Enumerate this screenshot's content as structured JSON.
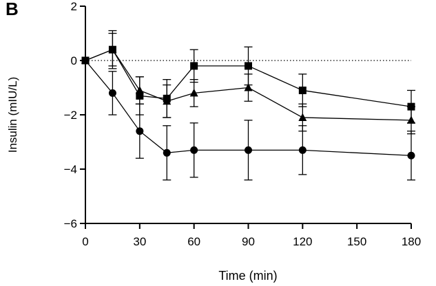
{
  "panel_label": "B",
  "chart_data": {
    "type": "line",
    "title": "",
    "xlabel": "Time (min)",
    "ylabel": "Insulin (mIU/L)",
    "xlim": [
      0,
      180
    ],
    "ylim": [
      -6,
      2
    ],
    "xticks": [
      0,
      30,
      60,
      90,
      120,
      150,
      180
    ],
    "yticks": [
      -6,
      -4,
      -2,
      0,
      2
    ],
    "xtick_labels": [
      "0",
      "30",
      "60",
      "90",
      "120",
      "150",
      "180"
    ],
    "ytick_labels": [
      "−6",
      "−4",
      "−2",
      "0",
      "2"
    ],
    "reference_line": {
      "y": 0,
      "style": "dotted"
    },
    "grid": false,
    "series": [
      {
        "name": "circle series",
        "marker": "circle",
        "x": [
          0,
          15,
          30,
          45,
          60,
          90,
          120,
          180
        ],
        "y": [
          0,
          -1.2,
          -2.6,
          -3.4,
          -3.3,
          -3.3,
          -3.3,
          -3.5
        ],
        "err": [
          0,
          0.8,
          1.0,
          1.0,
          1.0,
          1.1,
          0.9,
          0.9
        ]
      },
      {
        "name": "square series",
        "marker": "square",
        "x": [
          0,
          15,
          30,
          45,
          60,
          90,
          120,
          180
        ],
        "y": [
          0,
          0.4,
          -1.3,
          -1.4,
          -0.2,
          -0.2,
          -1.1,
          -1.7
        ],
        "err": [
          0,
          0.7,
          0.7,
          0.7,
          0.6,
          0.7,
          0.6,
          0.6
        ]
      },
      {
        "name": "triangle series",
        "marker": "triangle",
        "x": [
          0,
          15,
          30,
          45,
          60,
          90,
          120,
          180
        ],
        "y": [
          0,
          0.4,
          -1.1,
          -1.5,
          -1.2,
          -1.0,
          -2.1,
          -2.2
        ],
        "err": [
          0,
          0.6,
          0.5,
          0.6,
          0.5,
          0.5,
          0.5,
          0.5
        ]
      }
    ]
  }
}
